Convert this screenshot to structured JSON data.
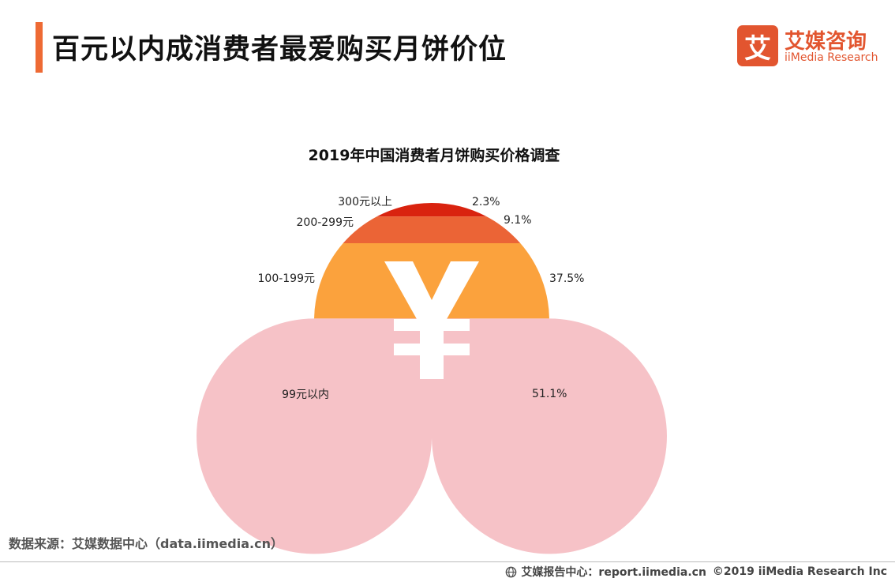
{
  "header": {
    "title": "百元以内成消费者最爱购买月饼价位",
    "accent_color": "#ee6a34"
  },
  "logo": {
    "mark": "艾",
    "name_cn": "艾媒咨询",
    "name_en": "iiMedia Research",
    "color": "#e2552f"
  },
  "chart_data": {
    "type": "pie",
    "title": "2019年中国消费者月饼购买价格调查",
    "center_icon": "yen-icon",
    "slices": [
      {
        "label": "300元以上",
        "value": 2.3,
        "display": "2.3%",
        "color": "#d9230f"
      },
      {
        "label": "200-299元",
        "value": 9.1,
        "display": "9.1%",
        "color": "#eb6436"
      },
      {
        "label": "100-199元",
        "value": 37.5,
        "display": "37.5%",
        "color": "#fba23d"
      },
      {
        "label": "99元以内",
        "value": 51.1,
        "display": "51.1%",
        "color": "#f6c2c7"
      }
    ]
  },
  "source": "数据来源：艾媒数据中心（data.iimedia.cn）",
  "footer": {
    "report": "艾媒报告中心：report.iimedia.cn",
    "copyright": "©2019  iiMedia Research  Inc"
  }
}
